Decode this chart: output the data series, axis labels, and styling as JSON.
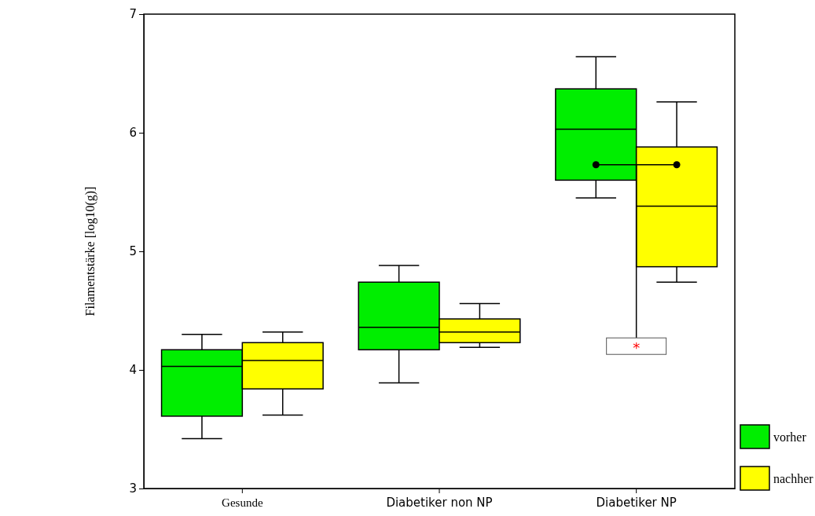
{
  "chart_data": {
    "type": "box",
    "ylabel": "Filamentstärke [log10(g)]",
    "categories": [
      "Gesunde",
      "Diabetiker non NP",
      "Diabetiker NP"
    ],
    "series": [
      {
        "name": "vorher",
        "color": "#00ee00",
        "boxes": [
          {
            "low": 3.42,
            "q1": 3.61,
            "median": 4.03,
            "q3": 4.17,
            "high": 4.3
          },
          {
            "low": 3.89,
            "q1": 4.17,
            "median": 4.36,
            "q3": 4.74,
            "high": 4.88
          },
          {
            "low": 5.45,
            "q1": 5.6,
            "median": 6.03,
            "q3": 6.37,
            "high": 6.64
          }
        ]
      },
      {
        "name": "nachher",
        "color": "#ffff00",
        "boxes": [
          {
            "low": 3.62,
            "q1": 3.84,
            "median": 4.08,
            "q3": 4.23,
            "high": 4.32
          },
          {
            "low": 4.19,
            "q1": 4.23,
            "median": 4.32,
            "q3": 4.43,
            "high": 4.56
          },
          {
            "low": 4.74,
            "q1": 4.87,
            "median": 5.38,
            "q3": 5.88,
            "high": 6.26
          }
        ]
      }
    ],
    "ylim": [
      3,
      7
    ],
    "yticks": [
      3,
      4,
      5,
      6,
      7
    ],
    "grid": false,
    "legend": "bottom right",
    "annotations": [
      {
        "text": "*",
        "y": 5.73
      }
    ]
  }
}
